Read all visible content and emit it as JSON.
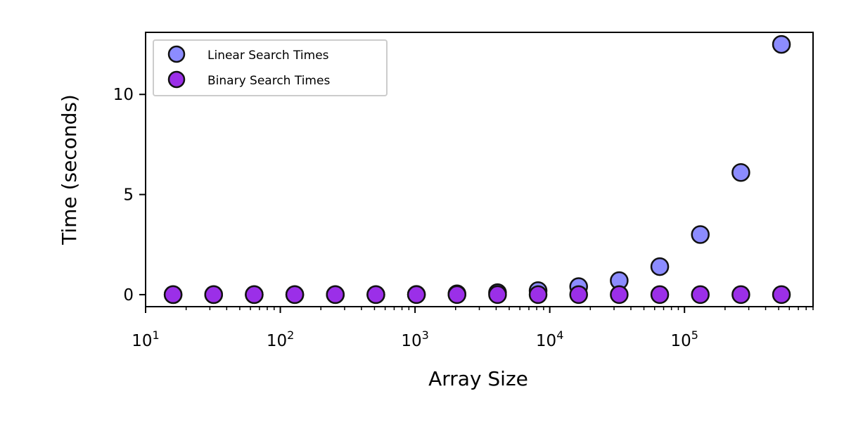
{
  "chart_data": {
    "type": "scatter",
    "title": "",
    "xlabel": "Array Size",
    "ylabel": "Time (seconds)",
    "xscale": "log",
    "xlim": [
      10,
      900000
    ],
    "ylim": [
      -0.6,
      13.1
    ],
    "x_ticks": [
      {
        "value": 10,
        "base": "10",
        "exp": "1"
      },
      {
        "value": 100,
        "base": "10",
        "exp": "2"
      },
      {
        "value": 1000,
        "base": "10",
        "exp": "3"
      },
      {
        "value": 10000,
        "base": "10",
        "exp": "4"
      },
      {
        "value": 100000,
        "base": "10",
        "exp": "5"
      }
    ],
    "y_ticks": [
      {
        "value": 0,
        "label": "0"
      },
      {
        "value": 5,
        "label": "5"
      },
      {
        "value": 10,
        "label": "10"
      }
    ],
    "grid": false,
    "legend_position": "upper-left",
    "series": [
      {
        "name": "Linear Search Times",
        "color": "#8c8cff",
        "x": [
          16,
          32,
          64,
          128,
          256,
          512,
          1024,
          2048,
          4096,
          8192,
          16384,
          32768,
          65536,
          131072,
          262144,
          524288
        ],
        "y": [
          0.0,
          0.0,
          0.0,
          0.0,
          0.0,
          0.0,
          0.01,
          0.04,
          0.1,
          0.2,
          0.4,
          0.7,
          1.4,
          3.0,
          6.1,
          12.5
        ]
      },
      {
        "name": "Binary Search Times",
        "color": "#9b2fe8",
        "x": [
          16,
          32,
          64,
          128,
          256,
          512,
          1024,
          2048,
          4096,
          8192,
          16384,
          32768,
          65536,
          131072,
          262144,
          524288
        ],
        "y": [
          0.0,
          0.0,
          0.0,
          0.0,
          0.0,
          0.0,
          0.0,
          0.0,
          0.0,
          0.0,
          0.0,
          0.0,
          0.0,
          0.0,
          0.0,
          0.0
        ]
      }
    ]
  }
}
